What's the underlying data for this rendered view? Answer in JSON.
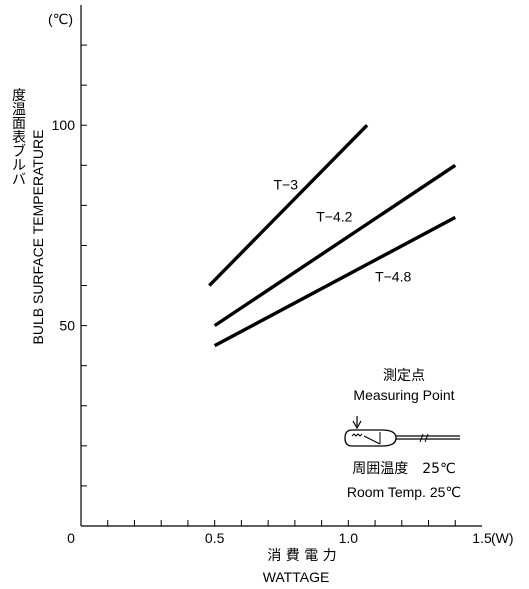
{
  "chart_data": {
    "type": "line",
    "x_unit": "(W)",
    "y_unit": "(℃)",
    "xlabel_jp": "消 費 電 力",
    "xlabel": "WATTAGE",
    "ylabel_jp": "バルブ表面温度",
    "ylabel": "BULB SURFACE TEMPERATURE",
    "xlim": [
      0,
      1.5
    ],
    "ylim": [
      0,
      130
    ],
    "x_ticks": [
      {
        "value": 0,
        "label": "0"
      },
      {
        "value": 0.5,
        "label": "0.5"
      },
      {
        "value": 1.0,
        "label": "1.0"
      },
      {
        "value": 1.5,
        "label": "1.5"
      }
    ],
    "y_ticks": [
      {
        "value": 50,
        "label": "50"
      },
      {
        "value": 100,
        "label": "100"
      }
    ],
    "grid": false,
    "series": [
      {
        "name": "T−3",
        "x": [
          0.48,
          1.07
        ],
        "y": [
          60,
          100
        ],
        "label_at": [
          0.72,
          84
        ]
      },
      {
        "name": "T−4.2",
        "x": [
          0.5,
          1.4
        ],
        "y": [
          50,
          90
        ],
        "label_at": [
          0.88,
          76
        ]
      },
      {
        "name": "T−4.8",
        "x": [
          0.5,
          1.4
        ],
        "y": [
          45,
          77
        ],
        "label_at": [
          1.1,
          61
        ]
      }
    ],
    "annotation": {
      "title_jp": "測定点",
      "title": "Measuring Point",
      "line1": "周囲温度　25℃",
      "line2": "Room Temp. 25℃"
    }
  }
}
